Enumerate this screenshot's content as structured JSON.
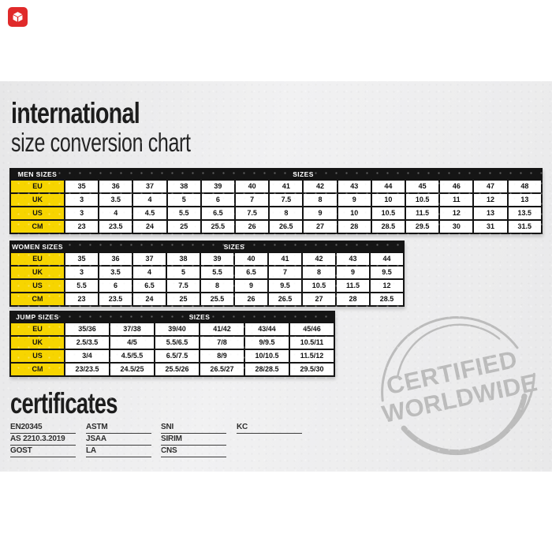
{
  "badge": {
    "name": "marketplace-badge",
    "color": "#e02a2a"
  },
  "header": {
    "title_line1": "international",
    "title_line2": "size conversion chart"
  },
  "tables": [
    {
      "name": "MEN SIZES",
      "sizes_label": "SIZES",
      "rows": [
        {
          "label": "EU",
          "values": [
            "35",
            "36",
            "37",
            "38",
            "39",
            "40",
            "41",
            "42",
            "43",
            "44",
            "45",
            "46",
            "47",
            "48"
          ]
        },
        {
          "label": "UK",
          "values": [
            "3",
            "3.5",
            "4",
            "5",
            "6",
            "7",
            "7.5",
            "8",
            "9",
            "10",
            "10.5",
            "11",
            "12",
            "13"
          ]
        },
        {
          "label": "US",
          "values": [
            "3",
            "4",
            "4.5",
            "5.5",
            "6.5",
            "7.5",
            "8",
            "9",
            "10",
            "10.5",
            "11.5",
            "12",
            "13",
            "13.5"
          ]
        },
        {
          "label": "CM",
          "values": [
            "23",
            "23.5",
            "24",
            "25",
            "25.5",
            "26",
            "26.5",
            "27",
            "28",
            "28.5",
            "29.5",
            "30",
            "31",
            "31.5"
          ]
        }
      ]
    },
    {
      "name": "WOMEN SIZES",
      "sizes_label": "SIZES",
      "rows": [
        {
          "label": "EU",
          "values": [
            "35",
            "36",
            "37",
            "38",
            "39",
            "40",
            "41",
            "42",
            "43",
            "44"
          ]
        },
        {
          "label": "UK",
          "values": [
            "3",
            "3.5",
            "4",
            "5",
            "5.5",
            "6.5",
            "7",
            "8",
            "9",
            "9.5"
          ]
        },
        {
          "label": "US",
          "values": [
            "5.5",
            "6",
            "6.5",
            "7.5",
            "8",
            "9",
            "9.5",
            "10.5",
            "11.5",
            "12"
          ]
        },
        {
          "label": "CM",
          "values": [
            "23",
            "23.5",
            "24",
            "25",
            "25.5",
            "26",
            "26.5",
            "27",
            "28",
            "28.5"
          ]
        }
      ]
    },
    {
      "name": "JUMP SIZES",
      "sizes_label": "SIZES",
      "rows": [
        {
          "label": "EU",
          "values": [
            "35/36",
            "37/38",
            "39/40",
            "41/42",
            "43/44",
            "45/46"
          ]
        },
        {
          "label": "UK",
          "values": [
            "2.5/3.5",
            "4/5",
            "5.5/6.5",
            "7/8",
            "9/9.5",
            "10.5/11"
          ]
        },
        {
          "label": "US",
          "values": [
            "3/4",
            "4.5/5.5",
            "6.5/7.5",
            "8/9",
            "10/10.5",
            "11.5/12"
          ]
        },
        {
          "label": "CM",
          "values": [
            "23/23.5",
            "24.5/25",
            "25.5/26",
            "26.5/27",
            "28/28.5",
            "29.5/30"
          ]
        }
      ]
    }
  ],
  "certificates": {
    "title": "certificates",
    "columns": [
      [
        "EN20345",
        "AS 2210.3.2019",
        "GOST"
      ],
      [
        "ASTM",
        "JSAA",
        "LA"
      ],
      [
        "SNI",
        "SIRIM",
        "CNS"
      ],
      [
        "KC"
      ]
    ]
  },
  "stamp": {
    "line1": "CERTIFIED",
    "line2": "WORLDWIDE",
    "color": "#bcbcbc"
  },
  "colors": {
    "accent_yellow": "#f7d500",
    "table_black": "#151515",
    "badge_red": "#e02a2a",
    "stamp_gray": "#bcbcbc",
    "band_gray": "#ebebec"
  }
}
